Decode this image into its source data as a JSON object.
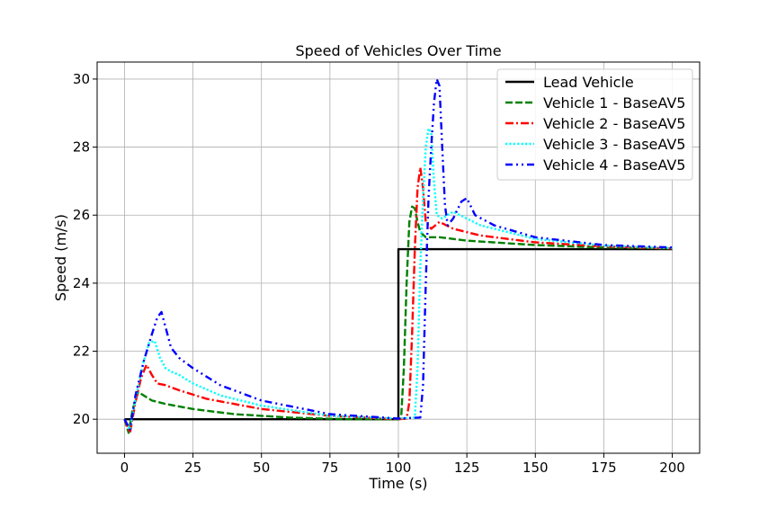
{
  "chart_data": {
    "type": "line",
    "title": "Speed of Vehicles Over Time",
    "xlabel": "Time (s)",
    "ylabel": "Speed (m/s)",
    "xlim": [
      -10,
      210
    ],
    "ylim": [
      19.0,
      30.5
    ],
    "xticks": [
      0,
      25,
      50,
      75,
      100,
      125,
      150,
      175,
      200
    ],
    "yticks": [
      20,
      22,
      24,
      26,
      28,
      30
    ],
    "grid": true,
    "legend_position": "top-right",
    "series": [
      {
        "name": "Lead Vehicle",
        "color": "#000000",
        "dash": "solid",
        "x": [
          0,
          100,
          100,
          200
        ],
        "y": [
          20.0,
          20.0,
          25.0,
          25.0
        ]
      },
      {
        "name": "Vehicle 1 - BaseAV5",
        "color": "#008000",
        "dash": "dashed",
        "x": [
          0,
          1.5,
          3,
          5,
          7,
          10,
          15,
          25,
          40,
          60,
          80,
          100,
          101,
          102,
          103,
          104,
          105,
          106,
          107,
          108,
          110,
          115,
          125,
          150,
          175,
          200
        ],
        "y": [
          20.0,
          19.6,
          20.3,
          20.8,
          20.7,
          20.55,
          20.45,
          20.3,
          20.15,
          20.05,
          20.0,
          20.0,
          20.02,
          21.5,
          24.0,
          25.8,
          26.25,
          26.2,
          25.8,
          25.5,
          25.35,
          25.35,
          25.25,
          25.12,
          25.05,
          25.02
        ]
      },
      {
        "name": "Vehicle 2 - BaseAV5",
        "color": "#ff0000",
        "dash": "dashdot",
        "x": [
          0,
          2,
          4,
          6,
          8,
          10,
          12,
          15,
          20,
          30,
          50,
          75,
          100,
          103,
          104,
          105,
          106,
          107,
          108,
          109,
          110,
          112,
          115,
          120,
          130,
          150,
          175,
          200
        ],
        "y": [
          20.0,
          19.6,
          20.5,
          21.2,
          21.6,
          21.3,
          21.05,
          21.0,
          20.85,
          20.6,
          20.3,
          20.1,
          20.0,
          20.02,
          20.5,
          22.5,
          25.0,
          26.8,
          27.4,
          26.8,
          25.8,
          25.6,
          25.8,
          25.6,
          25.4,
          25.2,
          25.08,
          25.02
        ]
      },
      {
        "name": "Vehicle 3 - BaseAV5",
        "color": "#00ffff",
        "dash": "dotted",
        "x": [
          0,
          2,
          4,
          7,
          9,
          11,
          13,
          15,
          17,
          20,
          25,
          35,
          50,
          75,
          100,
          106,
          107,
          108,
          109,
          110,
          111,
          112,
          113,
          114,
          116,
          120,
          130,
          150,
          175,
          200
        ],
        "y": [
          20.0,
          19.7,
          20.6,
          21.7,
          22.25,
          22.3,
          21.8,
          21.5,
          21.4,
          21.3,
          21.05,
          20.7,
          20.4,
          20.1,
          20.02,
          20.05,
          21.5,
          24.5,
          26.5,
          28.0,
          28.55,
          28.4,
          27.0,
          26.0,
          25.9,
          26.1,
          25.7,
          25.3,
          25.1,
          25.03
        ]
      },
      {
        "name": "Vehicle 4 - BaseAV5",
        "color": "#0000ff",
        "dash": "dashdotdot",
        "x": [
          0,
          2,
          4,
          7,
          10,
          12,
          13.5,
          15,
          17,
          20,
          25,
          35,
          50,
          75,
          100,
          108,
          109,
          110,
          111,
          112,
          113,
          114,
          115,
          116,
          117,
          118,
          120,
          123,
          125,
          128,
          135,
          150,
          175,
          200
        ],
        "y": [
          20.0,
          19.7,
          20.7,
          21.7,
          22.5,
          23.0,
          23.15,
          22.7,
          22.1,
          21.8,
          21.5,
          21.0,
          20.55,
          20.15,
          20.02,
          20.05,
          21.0,
          24.0,
          26.5,
          28.0,
          29.3,
          30.0,
          29.8,
          28.0,
          26.3,
          25.7,
          25.9,
          26.4,
          26.5,
          26.0,
          25.7,
          25.35,
          25.12,
          25.05
        ]
      }
    ]
  }
}
